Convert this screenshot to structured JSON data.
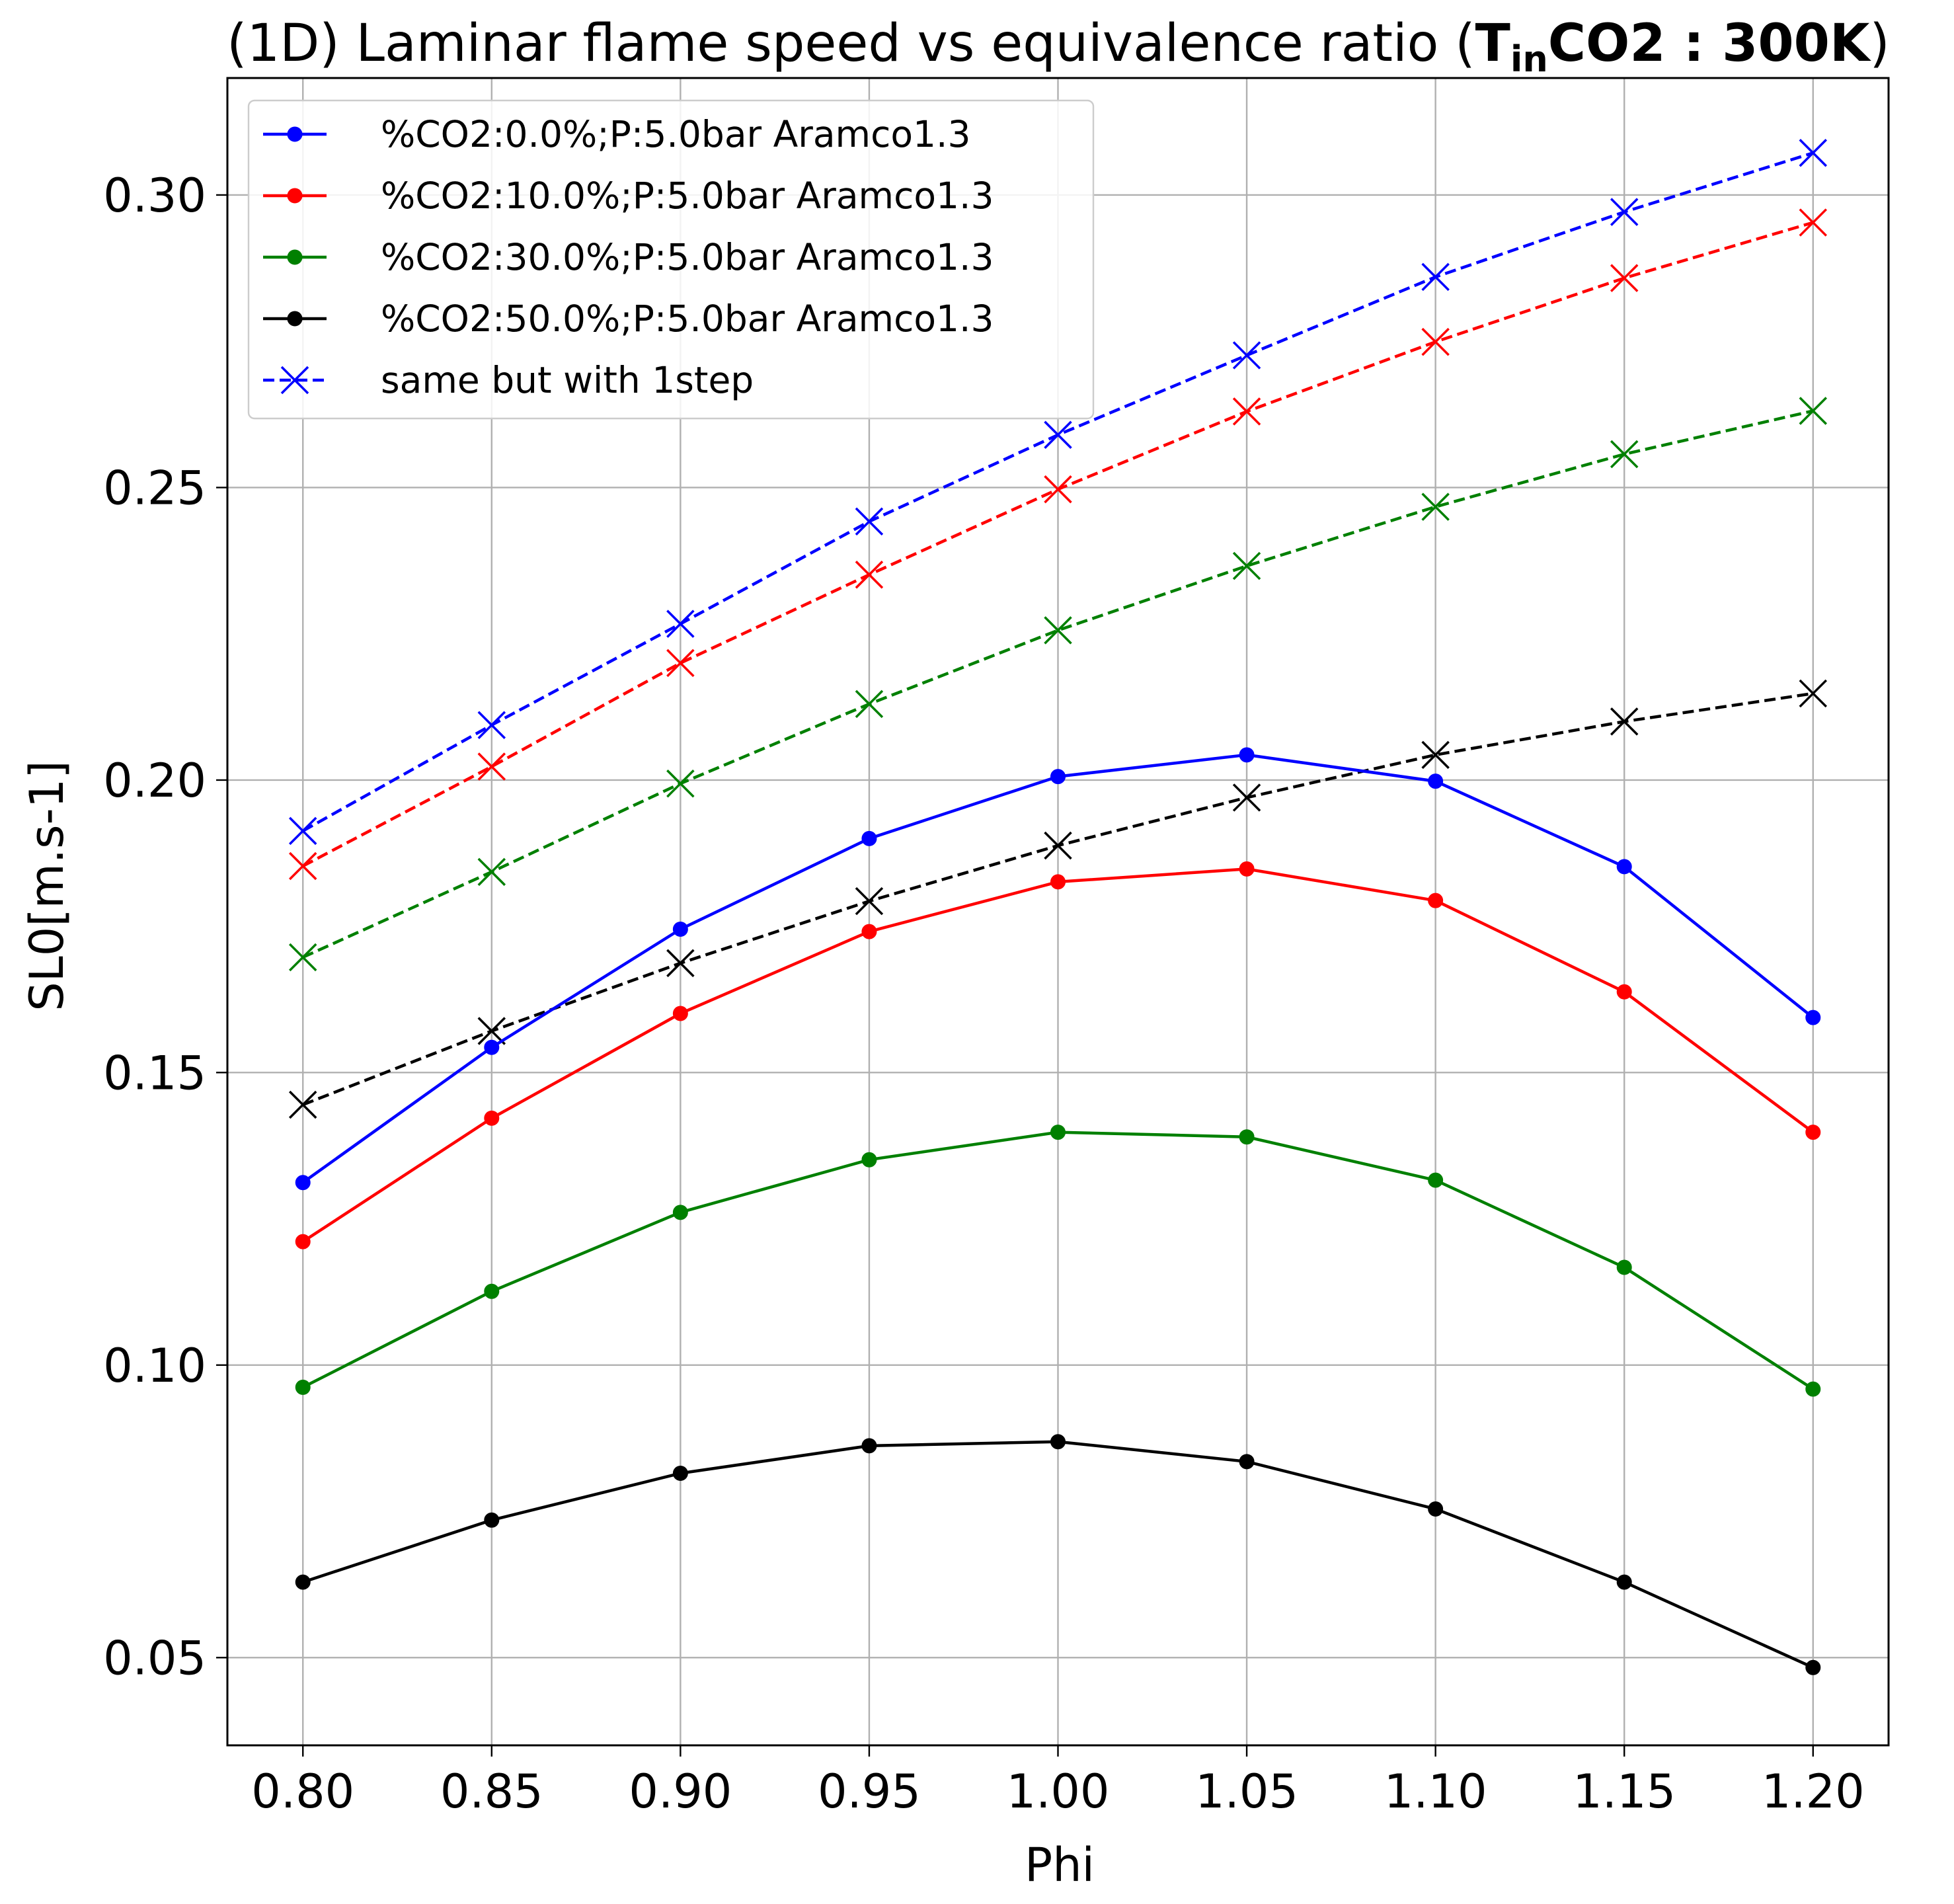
{
  "chart_data": {
    "type": "line",
    "title": {
      "prefix": "(1D) Laminar flame speed vs equivalence ratio (",
      "bold_main": "T",
      "bold_sub": "in",
      "bold_rest": "CO2 : 300K",
      "suffix": ")"
    },
    "xlabel": "Phi",
    "ylabel": "SL0[m.s-1]",
    "xlim": [
      0.78,
      1.22
    ],
    "ylim": [
      0.035,
      0.32
    ],
    "x_ticks": [
      "0.80",
      "0.85",
      "0.90",
      "0.95",
      "1.00",
      "1.05",
      "1.10",
      "1.15",
      "1.20"
    ],
    "y_ticks": [
      "0.05",
      "0.10",
      "0.15",
      "0.20",
      "0.25",
      "0.30"
    ],
    "grid": true,
    "legend_position": "top-left",
    "x": [
      0.8,
      0.85,
      0.9,
      0.95,
      1.0,
      1.05,
      1.1,
      1.15,
      1.2
    ],
    "series": [
      {
        "name": "%CO2:0.0%;P:5.0bar Aramco1.3",
        "color": "#0000ff",
        "style": "solid",
        "marker": "circle",
        "values": [
          0.1312,
          0.1543,
          0.1745,
          0.19,
          0.2006,
          0.2043,
          0.1998,
          0.1852,
          0.1594
        ]
      },
      {
        "name": "%CO2:10.0%;P:5.0bar Aramco1.3",
        "color": "#ff0000",
        "style": "solid",
        "marker": "circle",
        "values": [
          0.1211,
          0.1422,
          0.1601,
          0.1741,
          0.1826,
          0.1848,
          0.1794,
          0.1638,
          0.1398
        ]
      },
      {
        "name": "%CO2:30.0%;P:5.0bar Aramco1.3",
        "color": "#008000",
        "style": "solid",
        "marker": "circle",
        "values": [
          0.0962,
          0.1126,
          0.1261,
          0.1351,
          0.1398,
          0.139,
          0.1316,
          0.1167,
          0.0959
        ]
      },
      {
        "name": "%CO2:50.0%;P:5.0bar Aramco1.3",
        "color": "#000000",
        "style": "solid",
        "marker": "circle",
        "values": [
          0.0629,
          0.0735,
          0.0815,
          0.0862,
          0.0869,
          0.0835,
          0.0754,
          0.0629,
          0.0483
        ]
      },
      {
        "name": "same but with 1step",
        "color": "#0000ff",
        "style": "dashed",
        "marker": "x",
        "values": [
          0.1913,
          0.2094,
          0.2267,
          0.2442,
          0.259,
          0.2726,
          0.286,
          0.2971,
          0.3072
        ]
      },
      {
        "name": "",
        "color": "#ff0000",
        "style": "dashed",
        "marker": "x",
        "values": [
          0.1853,
          0.2023,
          0.22,
          0.2351,
          0.2497,
          0.263,
          0.2749,
          0.2858,
          0.2953
        ]
      },
      {
        "name": "",
        "color": "#008000",
        "style": "dashed",
        "marker": "x",
        "values": [
          0.1697,
          0.1843,
          0.1994,
          0.213,
          0.2256,
          0.2366,
          0.2467,
          0.2557,
          0.2631
        ]
      },
      {
        "name": "",
        "color": "#000000",
        "style": "dashed",
        "marker": "x",
        "values": [
          0.1445,
          0.1571,
          0.1687,
          0.1793,
          0.1888,
          0.197,
          0.2043,
          0.21,
          0.2148
        ]
      }
    ]
  }
}
